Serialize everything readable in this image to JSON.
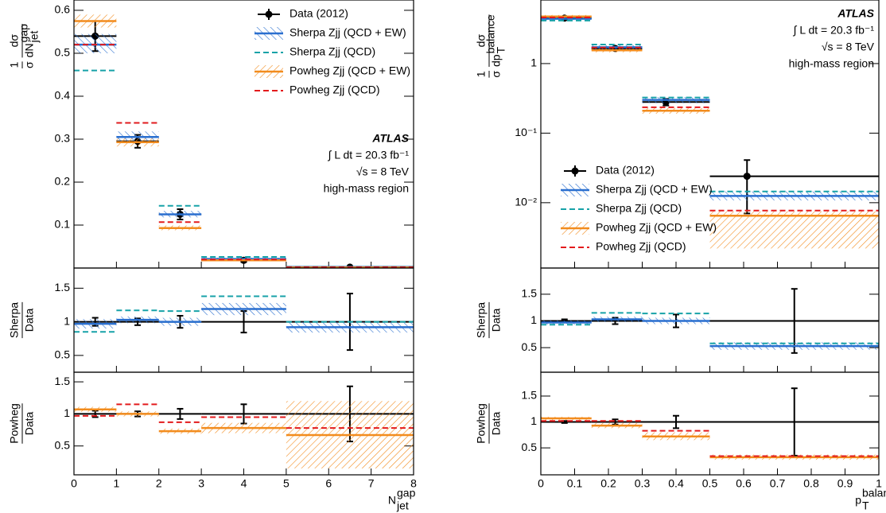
{
  "chart_data": [
    {
      "type": "histogram",
      "bins": [
        0,
        1,
        2,
        3,
        5,
        8
      ],
      "xlim": [
        0,
        8
      ],
      "xticks": [
        0,
        1,
        2,
        3,
        4,
        5,
        6,
        7,
        8
      ],
      "xlabel": {
        "main": "N",
        "sup": "gap",
        "sub": "jet"
      },
      "legend": "upper right",
      "annotations": [
        "ATLAS",
        "∫ L dt = 20.3 fb⁻¹",
        "√s = 8 TeV",
        "high-mass region"
      ],
      "panels": [
        {
          "ylim": [
            0,
            0.624
          ],
          "yticks": [
            0.1,
            0.2,
            0.3,
            0.4,
            0.5,
            0.6
          ],
          "log": false,
          "ylabel": [
            {
              "num": "1",
              "den": "σ"
            },
            {
              "num": "dσ",
              "den": "dN",
              "sup": "gap",
              "sub": "jet"
            }
          ],
          "series": [
            {
              "name": "Data (2012)",
              "style": "points",
              "color": "#000000",
              "x": [
                0.5,
                1.5,
                2.5,
                4,
                6.5
              ],
              "values": [
                0.54,
                0.295,
                0.125,
                0.018,
                0.002
              ],
              "errors": [
                0.035,
                0.015,
                0.012,
                0.004,
                0.001
              ]
            },
            {
              "name": "Sherpa Zjj (QCD + EW)",
              "style": "band",
              "color": "#2a6fcf",
              "values": [
                0.52,
                0.305,
                0.125,
                0.021,
                0.0025
              ],
              "band_low": [
                0.5,
                0.295,
                0.118,
                0.018,
                0.002
              ],
              "band_high": [
                0.545,
                0.318,
                0.133,
                0.024,
                0.003
              ]
            },
            {
              "name": "Sherpa Zjj (QCD)",
              "style": "dashed",
              "color": "#17a2a8",
              "values": [
                0.46,
                0.338,
                0.145,
                0.026,
                0.003
              ]
            },
            {
              "name": "Powheg Zjj (QCD + EW)",
              "style": "band",
              "color": "#f28c1e",
              "values": [
                0.575,
                0.293,
                0.093,
                0.018,
                0.0015
              ],
              "band_low": [
                0.56,
                0.283,
                0.088,
                0.016,
                0.001
              ],
              "band_high": [
                0.59,
                0.302,
                0.099,
                0.02,
                0.002
              ]
            },
            {
              "name": "Powheg Zjj (QCD)",
              "style": "dashed",
              "color": "#e31a1c",
              "values": [
                0.52,
                0.338,
                0.107,
                0.02,
                0.002
              ]
            }
          ]
        },
        {
          "ylim": [
            0.25,
            1.8
          ],
          "yticks": [
            0.5,
            1,
            1.5
          ],
          "log": false,
          "ylabel": [
            {
              "num": "Sherpa",
              "den": "Data"
            }
          ],
          "series": [
            {
              "style": "points",
              "marker": false,
              "color": "#000000",
              "x": [
                0.5,
                1.5,
                2.5,
                4,
                6.5
              ],
              "values": [
                1,
                1,
                1,
                1,
                1
              ],
              "errors": [
                0.06,
                0.05,
                0.09,
                0.16,
                0.42
              ]
            },
            {
              "style": "band",
              "color": "#2a6fcf",
              "values": [
                0.97,
                1.03,
                1.0,
                1.19,
                0.92
              ],
              "band_low": [
                0.9,
                0.98,
                0.94,
                1.1,
                0.84
              ],
              "band_high": [
                1.04,
                1.08,
                1.06,
                1.28,
                1.0
              ]
            },
            {
              "style": "dashed",
              "color": "#17a2a8",
              "values": [
                0.85,
                1.17,
                1.16,
                1.38,
                1.0
              ]
            }
          ]
        },
        {
          "ylim": [
            0.05,
            1.65
          ],
          "yticks": [
            0.5,
            1,
            1.5
          ],
          "log": false,
          "ylabel": [
            {
              "num": "Powheg",
              "den": "Data"
            }
          ],
          "series": [
            {
              "style": "points",
              "marker": false,
              "color": "#000000",
              "x": [
                0.5,
                1.5,
                2.5,
                4,
                6.5
              ],
              "values": [
                1,
                1,
                1,
                1,
                1
              ],
              "errors": [
                0.05,
                0.04,
                0.08,
                0.15,
                0.43
              ]
            },
            {
              "style": "band",
              "color": "#f28c1e",
              "values": [
                1.07,
                1.0,
                0.73,
                0.78,
                0.67
              ],
              "band_low": [
                1.03,
                0.96,
                0.69,
                0.7,
                0.15
              ],
              "band_high": [
                1.11,
                1.04,
                0.77,
                0.86,
                1.2
              ]
            },
            {
              "style": "dashed",
              "color": "#e31a1c",
              "values": [
                0.97,
                1.15,
                0.87,
                0.95,
                0.78
              ]
            }
          ]
        }
      ]
    },
    {
      "type": "histogram",
      "bins": [
        0,
        0.15,
        0.3,
        0.5,
        1
      ],
      "xlim": [
        0,
        1
      ],
      "xticks": [
        0,
        0.1,
        0.2,
        0.3,
        0.4,
        0.5,
        0.6,
        0.7,
        0.8,
        0.9,
        1
      ],
      "xlabel": {
        "main": "p",
        "sup": "balance",
        "sub": "T"
      },
      "legend": "center left",
      "annotations": [
        "ATLAS",
        "∫ L dt = 20.3 fb⁻¹",
        "√s = 8 TeV",
        "high-mass region"
      ],
      "panels": [
        {
          "ylim": [
            0.00115,
            8.2
          ],
          "yticks": [
            {
              "value": 0.01,
              "label": "10⁻²"
            },
            {
              "value": 0.1,
              "label": "10⁻¹"
            },
            1
          ],
          "log": true,
          "ylabel": [
            {
              "num": "1",
              "den": "σ"
            },
            {
              "num": "dσ",
              "den": "dp",
              "sup": "balance",
              "sub": "T"
            }
          ],
          "series": [
            {
              "name": "Data (2012)",
              "style": "points",
              "color": "#000000",
              "x": [
                0.07,
                0.22,
                0.37,
                0.61
              ],
              "values": [
                4.5,
                1.65,
                0.28,
                0.024
              ],
              "errors": [
                0.2,
                0.08,
                0.03,
                0.017
              ]
            },
            {
              "name": "Sherpa Zjj (QCD + EW)",
              "style": "band",
              "color": "#2a6fcf",
              "values": [
                4.4,
                1.72,
                0.3,
                0.0125
              ],
              "band_low": [
                4.2,
                1.6,
                0.27,
                0.0108
              ],
              "band_high": [
                4.6,
                1.85,
                0.33,
                0.0145
              ]
            },
            {
              "name": "Sherpa Zjj (QCD)",
              "style": "dashed",
              "color": "#17a2a8",
              "values": [
                4.15,
                1.88,
                0.325,
                0.0145
              ]
            },
            {
              "name": "Powheg Zjj (QCD + EW)",
              "style": "band",
              "color": "#f28c1e",
              "values": [
                4.75,
                1.55,
                0.21,
                0.0065
              ],
              "band_low": [
                4.5,
                1.45,
                0.19,
                0.0022
              ],
              "band_high": [
                5.0,
                1.65,
                0.23,
                0.0075
              ]
            },
            {
              "name": "Powheg Zjj (QCD)",
              "style": "dashed",
              "color": "#e31a1c",
              "values": [
                4.6,
                1.7,
                0.235,
                0.0077
              ]
            }
          ]
        },
        {
          "ylim": [
            0.04,
            1.99
          ],
          "yticks": [
            0.5,
            1,
            1.5
          ],
          "log": false,
          "ylabel": [
            {
              "num": "Sherpa",
              "den": "Data"
            }
          ],
          "series": [
            {
              "style": "points",
              "marker": false,
              "color": "#000000",
              "x": [
                0.07,
                0.22,
                0.4,
                0.75
              ],
              "values": [
                1,
                1,
                1,
                1
              ],
              "errors": [
                0.03,
                0.06,
                0.12,
                0.6
              ]
            },
            {
              "style": "band",
              "color": "#2a6fcf",
              "values": [
                0.97,
                1.03,
                1.0,
                0.53
              ],
              "band_low": [
                0.93,
                0.98,
                0.94,
                0.46
              ],
              "band_high": [
                1.01,
                1.08,
                1.06,
                0.6
              ]
            },
            {
              "style": "dashed",
              "color": "#17a2a8",
              "values": [
                0.93,
                1.15,
                1.14,
                0.58
              ]
            }
          ]
        },
        {
          "ylim": [
            -0.02,
            1.96
          ],
          "yticks": [
            0.5,
            1,
            1.5
          ],
          "log": false,
          "ylabel": [
            {
              "num": "Powheg",
              "den": "Data"
            }
          ],
          "series": [
            {
              "style": "points",
              "marker": false,
              "color": "#000000",
              "x": [
                0.07,
                0.22,
                0.4,
                0.75
              ],
              "values": [
                1,
                1,
                1,
                1
              ],
              "errors": [
                0.02,
                0.05,
                0.12,
                0.65
              ]
            },
            {
              "style": "band",
              "color": "#f28c1e",
              "values": [
                1.07,
                0.93,
                0.72,
                0.32
              ],
              "band_low": [
                1.03,
                0.88,
                0.65,
                0.27
              ],
              "band_high": [
                1.1,
                0.98,
                0.8,
                0.37
              ]
            },
            {
              "style": "dashed",
              "color": "#e31a1c",
              "values": [
                1.02,
                1.02,
                0.83,
                0.34
              ]
            }
          ]
        }
      ]
    }
  ]
}
